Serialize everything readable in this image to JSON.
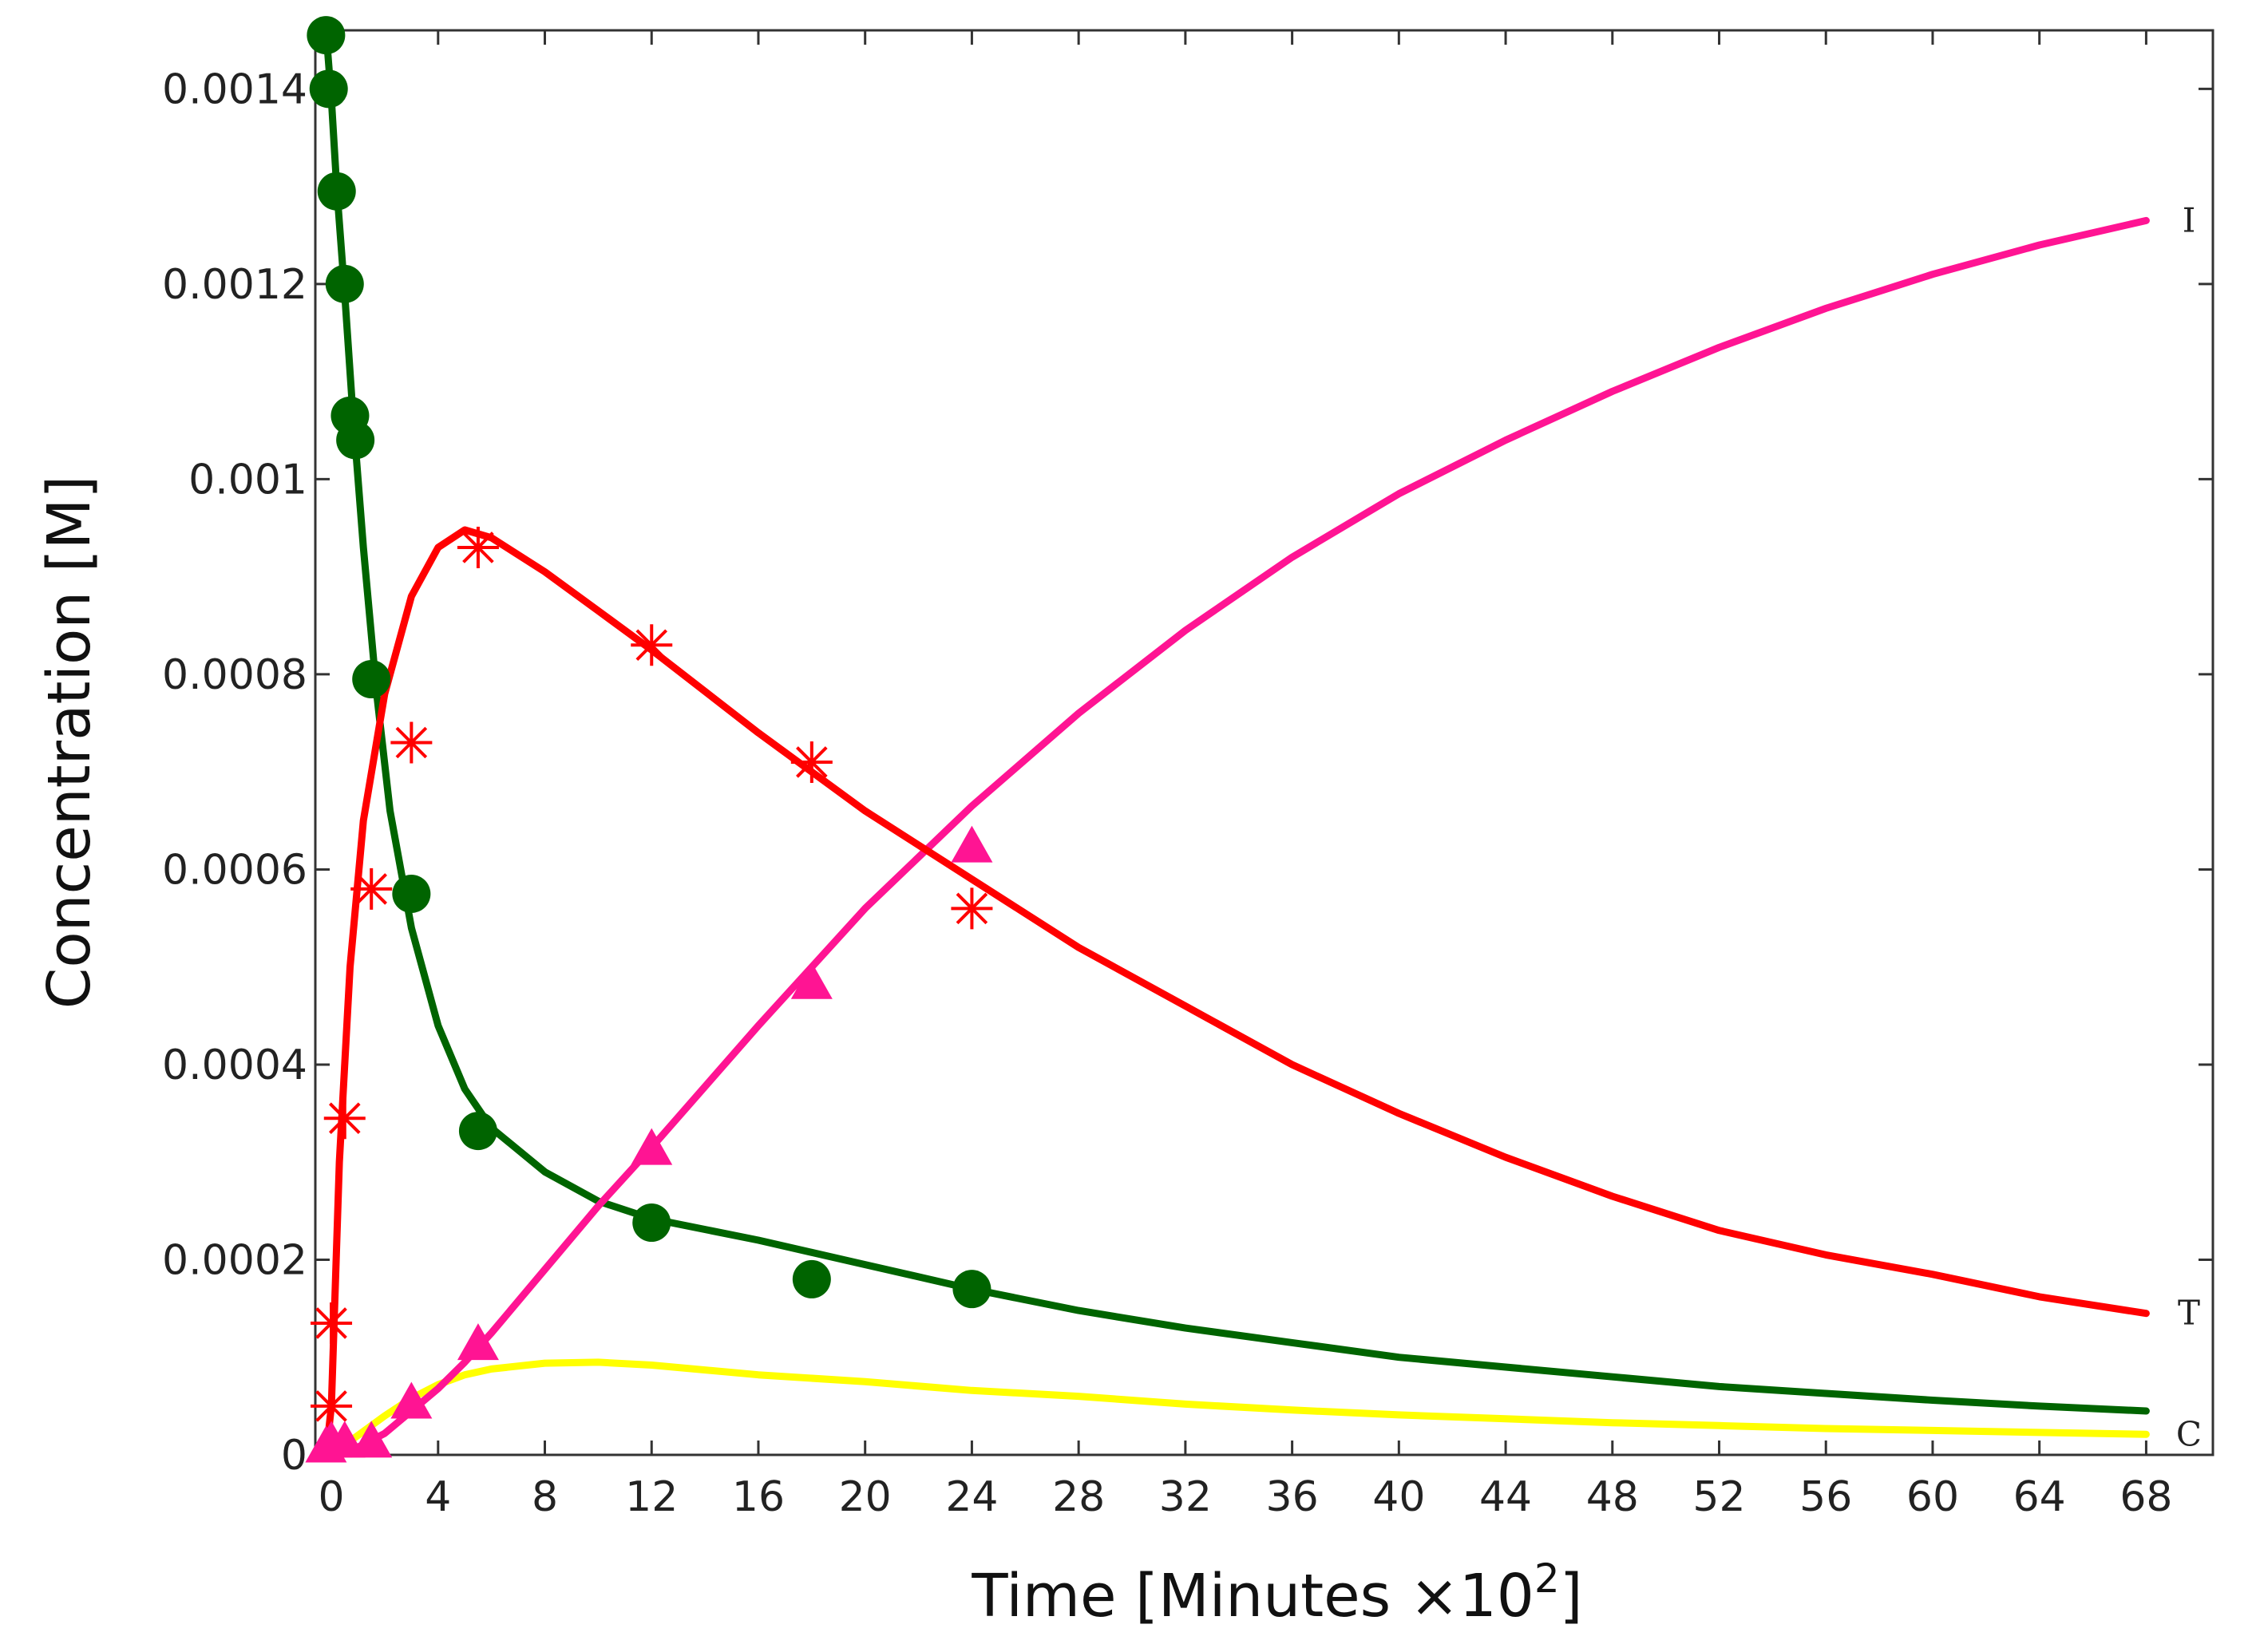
{
  "chart_data": {
    "type": "line",
    "title": "",
    "xlabel": "Time [Minutes ×10",
    "xlabel_exponent": "2",
    "xlabel_close": "]",
    "ylabel": "Concentration [M]",
    "xlim": [
      -0.6,
      70.5
    ],
    "ylim": [
      0,
      0.00146
    ],
    "x_ticks": [
      0,
      4,
      8,
      12,
      16,
      20,
      24,
      28,
      32,
      36,
      40,
      44,
      48,
      52,
      56,
      60,
      64,
      68
    ],
    "x_tick_labels": [
      "0",
      "4",
      "8",
      "12",
      "16",
      "20",
      "24",
      "28",
      "32",
      "36",
      "40",
      "44",
      "48",
      "52",
      "56",
      "60",
      "64",
      "68"
    ],
    "y_ticks": [
      0,
      0.0002,
      0.0004,
      0.0006,
      0.0008,
      0.001,
      0.0012,
      0.0014
    ],
    "y_tick_labels": [
      "0",
      "0.0002",
      "0.0004",
      "0.0006",
      "0.0008",
      "0.001",
      "0.0012",
      "0.0014"
    ],
    "grid": false,
    "legend": "none",
    "series": [
      {
        "label": "T",
        "color": "#ff0000",
        "marker": "asterisk",
        "points": [
          [
            0,
            5e-05
          ],
          [
            0,
            0.000135
          ],
          [
            0.5,
            0.000345
          ],
          [
            1.5,
            0.00058
          ],
          [
            3,
            0.00073
          ],
          [
            5.5,
            0.00093
          ],
          [
            12,
            0.00083
          ],
          [
            18,
            0.00071
          ],
          [
            24,
            0.00056
          ]
        ],
        "curve": [
          [
            -0.2,
            0
          ],
          [
            0,
            5e-05
          ],
          [
            0.3,
            0.0003
          ],
          [
            0.7,
            0.0005
          ],
          [
            1.2,
            0.00065
          ],
          [
            2,
            0.00078
          ],
          [
            3,
            0.00088
          ],
          [
            4,
            0.00093
          ],
          [
            5,
            0.000948
          ],
          [
            6,
            0.00094
          ],
          [
            8,
            0.000905
          ],
          [
            10,
            0.000865
          ],
          [
            12,
            0.000825
          ],
          [
            16,
            0.00074
          ],
          [
            20,
            0.00066
          ],
          [
            24,
            0.00059
          ],
          [
            28,
            0.00052
          ],
          [
            32,
            0.00046
          ],
          [
            36,
            0.0004
          ],
          [
            40,
            0.00035
          ],
          [
            44,
            0.000305
          ],
          [
            48,
            0.000265
          ],
          [
            52,
            0.00023
          ],
          [
            56,
            0.000205
          ],
          [
            60,
            0.000185
          ],
          [
            64,
            0.000162
          ],
          [
            68,
            0.000145
          ]
        ]
      },
      {
        "label": "",
        "color": "#006400",
        "marker": "circle",
        "points": [
          [
            -0.2,
            0.001455
          ],
          [
            -0.1,
            0.0014
          ],
          [
            0.2,
            0.001295
          ],
          [
            0.5,
            0.0012
          ],
          [
            0.7,
            0.001065
          ],
          [
            0.9,
            0.00104
          ],
          [
            1.5,
            0.000795
          ],
          [
            3,
            0.000575
          ],
          [
            5.5,
            0.000332
          ],
          [
            12,
            0.000238
          ],
          [
            18,
            0.00018
          ],
          [
            24,
            0.00017
          ]
        ],
        "curve": [
          [
            -0.2,
            0.00146
          ],
          [
            0,
            0.00139
          ],
          [
            0.2,
            0.0013
          ],
          [
            0.5,
            0.00119
          ],
          [
            0.8,
            0.00107
          ],
          [
            1.2,
            0.00093
          ],
          [
            1.7,
            0.00078
          ],
          [
            2.2,
            0.00066
          ],
          [
            3,
            0.00054
          ],
          [
            4,
            0.00044
          ],
          [
            5,
            0.000375
          ],
          [
            6,
            0.000335
          ],
          [
            8,
            0.00029
          ],
          [
            10,
            0.00026
          ],
          [
            12,
            0.000242
          ],
          [
            16,
            0.00022
          ],
          [
            20,
            0.000195
          ],
          [
            24,
            0.00017
          ],
          [
            28,
            0.000148
          ],
          [
            32,
            0.00013
          ],
          [
            36,
            0.000115
          ],
          [
            40,
            0.0001
          ],
          [
            44,
            9e-05
          ],
          [
            48,
            8e-05
          ],
          [
            52,
            7e-05
          ],
          [
            56,
            6.3e-05
          ],
          [
            60,
            5.6e-05
          ],
          [
            64,
            5e-05
          ],
          [
            68,
            4.5e-05
          ]
        ]
      },
      {
        "label": "I",
        "color": "#ff1493",
        "marker": "triangle",
        "points": [
          [
            -0.2,
            5e-06
          ],
          [
            0,
            1e-05
          ],
          [
            0.5,
            1e-05
          ],
          [
            1.5,
            1e-05
          ],
          [
            3,
            5e-05
          ],
          [
            5.5,
            0.00011
          ],
          [
            12,
            0.00031
          ],
          [
            18,
            0.00048
          ],
          [
            24,
            0.00062
          ]
        ],
        "curve": [
          [
            0,
            0
          ],
          [
            1,
            8e-06
          ],
          [
            2,
            2.2e-05
          ],
          [
            3,
            4.5e-05
          ],
          [
            4,
            6.8e-05
          ],
          [
            5,
            9.5e-05
          ],
          [
            6,
            0.000125
          ],
          [
            8,
            0.00019
          ],
          [
            10,
            0.000255
          ],
          [
            12,
            0.000315
          ],
          [
            16,
            0.00044
          ],
          [
            20,
            0.00056
          ],
          [
            24,
            0.000665
          ],
          [
            28,
            0.00076
          ],
          [
            32,
            0.000845
          ],
          [
            36,
            0.00092
          ],
          [
            40,
            0.000985
          ],
          [
            44,
            0.00104
          ],
          [
            48,
            0.00109
          ],
          [
            52,
            0.001135
          ],
          [
            56,
            0.001175
          ],
          [
            60,
            0.00121
          ],
          [
            64,
            0.00124
          ],
          [
            68,
            0.001265
          ]
        ]
      },
      {
        "label": "C",
        "color": "#ffff00",
        "marker": "none",
        "points": [],
        "curve": [
          [
            0,
            0
          ],
          [
            1,
            2e-05
          ],
          [
            2,
            4e-05
          ],
          [
            3,
            5.8e-05
          ],
          [
            4,
            7.2e-05
          ],
          [
            5,
            8.2e-05
          ],
          [
            6,
            8.8e-05
          ],
          [
            8,
            9.4e-05
          ],
          [
            10,
            9.5e-05
          ],
          [
            12,
            9.2e-05
          ],
          [
            16,
            8.2e-05
          ],
          [
            20,
            7.5e-05
          ],
          [
            24,
            6.6e-05
          ],
          [
            28,
            6e-05
          ],
          [
            32,
            5.2e-05
          ],
          [
            36,
            4.6e-05
          ],
          [
            40,
            4.1e-05
          ],
          [
            44,
            3.7e-05
          ],
          [
            48,
            3.3e-05
          ],
          [
            52,
            3e-05
          ],
          [
            56,
            2.7e-05
          ],
          [
            60,
            2.5e-05
          ],
          [
            64,
            2.3e-05
          ],
          [
            68,
            2.1e-05
          ]
        ]
      }
    ]
  }
}
